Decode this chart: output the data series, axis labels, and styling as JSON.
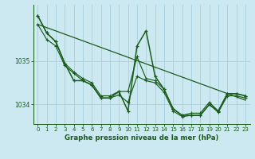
{
  "bg_color": "#cce8f0",
  "grid_color": "#aad4e0",
  "line_color": "#1a5c1a",
  "title": "Graphe pression niveau de la mer (hPa)",
  "xlim": [
    -0.5,
    23.5
  ],
  "ylim": [
    1033.55,
    1036.3
  ],
  "yticks": [
    1034,
    1035
  ],
  "ytick_labels": [
    "1034",
    "1035"
  ],
  "xticks": [
    0,
    1,
    2,
    3,
    4,
    5,
    6,
    7,
    8,
    9,
    10,
    11,
    12,
    13,
    14,
    15,
    16,
    17,
    18,
    19,
    20,
    21,
    22,
    23
  ],
  "series1_y": [
    1036.05,
    1035.65,
    1035.45,
    1034.95,
    1034.75,
    1034.6,
    1034.5,
    1034.2,
    1034.2,
    1034.3,
    1034.3,
    1035.1,
    1034.6,
    1034.55,
    1034.35,
    1033.9,
    1033.75,
    1033.8,
    1033.8,
    1034.05,
    1033.85,
    1034.25,
    1034.25,
    1034.2
  ],
  "series2_y": [
    1035.85,
    1035.5,
    1035.35,
    1034.9,
    1034.72,
    1034.55,
    1034.45,
    1034.15,
    1034.15,
    1034.22,
    1034.05,
    1034.65,
    1034.55,
    1034.5,
    1034.28,
    1033.85,
    1033.72,
    1033.75,
    1033.75,
    1034.0,
    1033.82,
    1034.2,
    1034.2,
    1034.15
  ],
  "series3_x": [
    0,
    1,
    2,
    3,
    4,
    5,
    6,
    7,
    8,
    9,
    10,
    11,
    12,
    13,
    14,
    15,
    16,
    17,
    18,
    19,
    20,
    21,
    22,
    23
  ],
  "series3_y": [
    1036.05,
    1035.65,
    1035.45,
    1034.95,
    1034.55,
    1034.55,
    1034.45,
    1034.15,
    1034.15,
    1034.3,
    1033.85,
    1035.35,
    1035.7,
    1034.65,
    1034.35,
    1033.9,
    1033.75,
    1033.75,
    1033.75,
    1034.0,
    1033.85,
    1034.25,
    1034.25,
    1034.2
  ],
  "trend_x": [
    0,
    23
  ],
  "trend_y": [
    1035.85,
    1034.1
  ]
}
